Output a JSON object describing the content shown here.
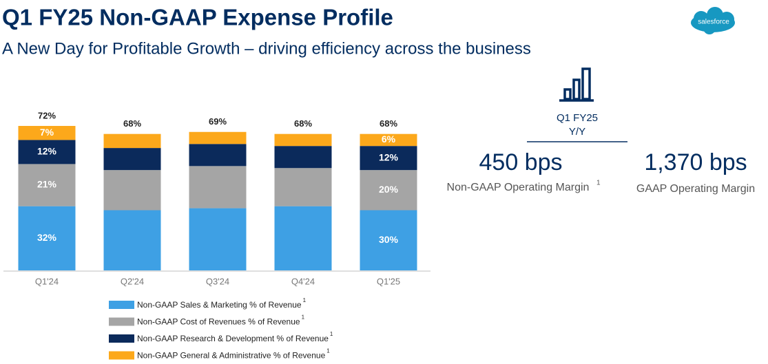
{
  "header": {
    "title": "Q1 FY25 Non-GAAP Expense Profile",
    "subtitle": "A New Day for Profitable Growth – driving efficiency across the business",
    "logo": "salesforce"
  },
  "chart_data": {
    "type": "stacked_bar",
    "categories": [
      "Q1'24",
      "Q2'24",
      "Q3'24",
      "Q4'24",
      "Q1'25"
    ],
    "series": [
      {
        "name": "Non-GAAP Sales & Marketing % of Revenue",
        "footnote": "1",
        "color": "#3ea0e4",
        "values": [
          32,
          30,
          31,
          32,
          30
        ],
        "value_labels": [
          "32%",
          null,
          null,
          null,
          "30%"
        ]
      },
      {
        "name": "Non-GAAP Cost of Revenues % of Revenue",
        "footnote": "1",
        "color": "#a5a5a5",
        "values": [
          21,
          20,
          21,
          19,
          20
        ],
        "value_labels": [
          "21%",
          null,
          null,
          null,
          "20%"
        ]
      },
      {
        "name": "Non-GAAP Research & Development % of Revenue",
        "footnote": "1",
        "color": "#0b2a5b",
        "values": [
          12,
          11,
          11,
          11,
          12
        ],
        "value_labels": [
          "12%",
          null,
          null,
          null,
          "12%"
        ]
      },
      {
        "name": "Non-GAAP General & Administrative % of Revenue",
        "footnote": "1",
        "color": "#fca81b",
        "values": [
          7,
          7,
          6,
          6,
          6
        ],
        "value_labels": [
          "7%",
          null,
          null,
          null,
          "6%"
        ]
      }
    ],
    "totals": {
      "values": [
        72,
        68,
        69,
        68,
        68
      ],
      "value_labels": [
        "72%",
        "68%",
        "69%",
        "68%",
        "68%"
      ]
    }
  },
  "summary": {
    "period": "Q1 FY25",
    "comparison": "Y/Y",
    "metrics": [
      {
        "value": "450 bps",
        "label": "Non-GAAP Operating Margin",
        "footnote": "1"
      },
      {
        "value": "1,370 bps",
        "label": "GAAP Operating Margin"
      }
    ]
  }
}
